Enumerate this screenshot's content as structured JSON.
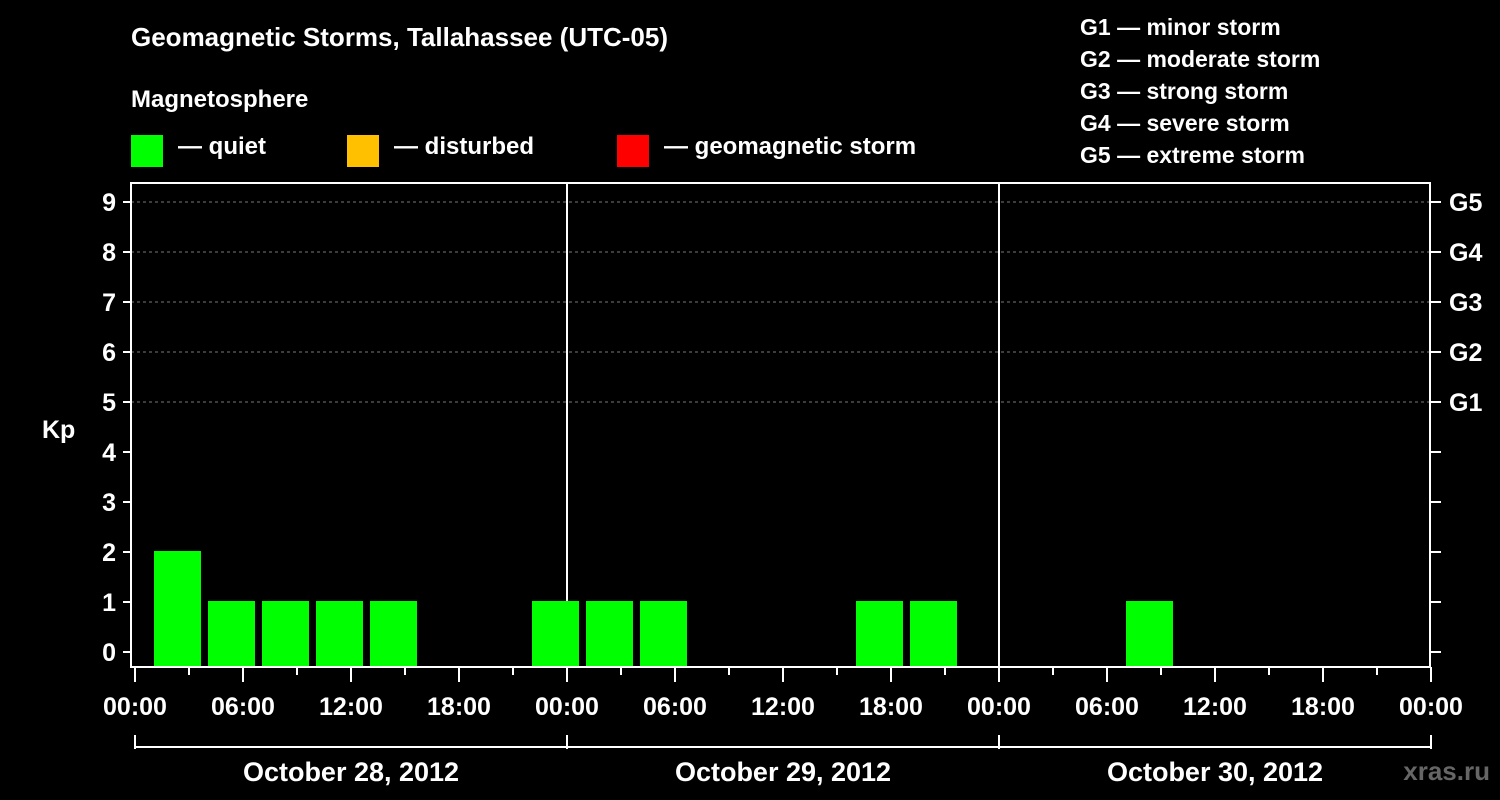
{
  "header": {
    "title": "Geomagnetic Storms, Tallahassee (UTC-05)",
    "magnetosphere_title": "Magnetosphere"
  },
  "legend": {
    "items": [
      {
        "label": "— quiet",
        "color": "#00ff00"
      },
      {
        "label": "— disturbed",
        "color": "#ffc000"
      },
      {
        "label": "— geomagnetic storm",
        "color": "#ff0000"
      }
    ]
  },
  "g_legend": [
    "G1 — minor storm",
    "G2 — moderate storm",
    "G3 — strong storm",
    "G4 — severe storm",
    "G5 — extreme storm"
  ],
  "watermark": "xras.ru",
  "chart_data": {
    "type": "bar",
    "title": "Geomagnetic Storms, Tallahassee (UTC-05)",
    "ylabel": "Kp",
    "ylim": [
      0,
      9
    ],
    "y_ticks": [
      0,
      1,
      2,
      3,
      4,
      5,
      6,
      7,
      8,
      9
    ],
    "right_axis_labels": [
      {
        "kp": 5,
        "label": "G1"
      },
      {
        "kp": 6,
        "label": "G2"
      },
      {
        "kp": 7,
        "label": "G3"
      },
      {
        "kp": 8,
        "label": "G4"
      },
      {
        "kp": 9,
        "label": "G5"
      }
    ],
    "x_range_hours": [
      0,
      72
    ],
    "x_tick_labels": [
      "00:00",
      "06:00",
      "12:00",
      "18:00",
      "00:00",
      "06:00",
      "12:00",
      "18:00",
      "00:00",
      "06:00",
      "12:00",
      "18:00",
      "00:00"
    ],
    "x_tick_step_hours": 6,
    "days": [
      "October 28, 2012",
      "October 29, 2012",
      "October 30, 2012"
    ],
    "bar_width_hours": 3,
    "bars": [
      {
        "start_hour": 1,
        "kp": 2,
        "status": "quiet"
      },
      {
        "start_hour": 4,
        "kp": 1,
        "status": "quiet"
      },
      {
        "start_hour": 7,
        "kp": 1,
        "status": "quiet"
      },
      {
        "start_hour": 10,
        "kp": 1,
        "status": "quiet"
      },
      {
        "start_hour": 13,
        "kp": 1,
        "status": "quiet"
      },
      {
        "start_hour": 22,
        "kp": 1,
        "status": "quiet"
      },
      {
        "start_hour": 25,
        "kp": 1,
        "status": "quiet"
      },
      {
        "start_hour": 28,
        "kp": 1,
        "status": "quiet"
      },
      {
        "start_hour": 40,
        "kp": 1,
        "status": "quiet"
      },
      {
        "start_hour": 43,
        "kp": 1,
        "status": "quiet"
      },
      {
        "start_hour": 55,
        "kp": 1,
        "status": "quiet"
      }
    ],
    "status_colors": {
      "quiet": "#00ff00",
      "disturbed": "#ffc000",
      "storm": "#ff0000"
    }
  }
}
